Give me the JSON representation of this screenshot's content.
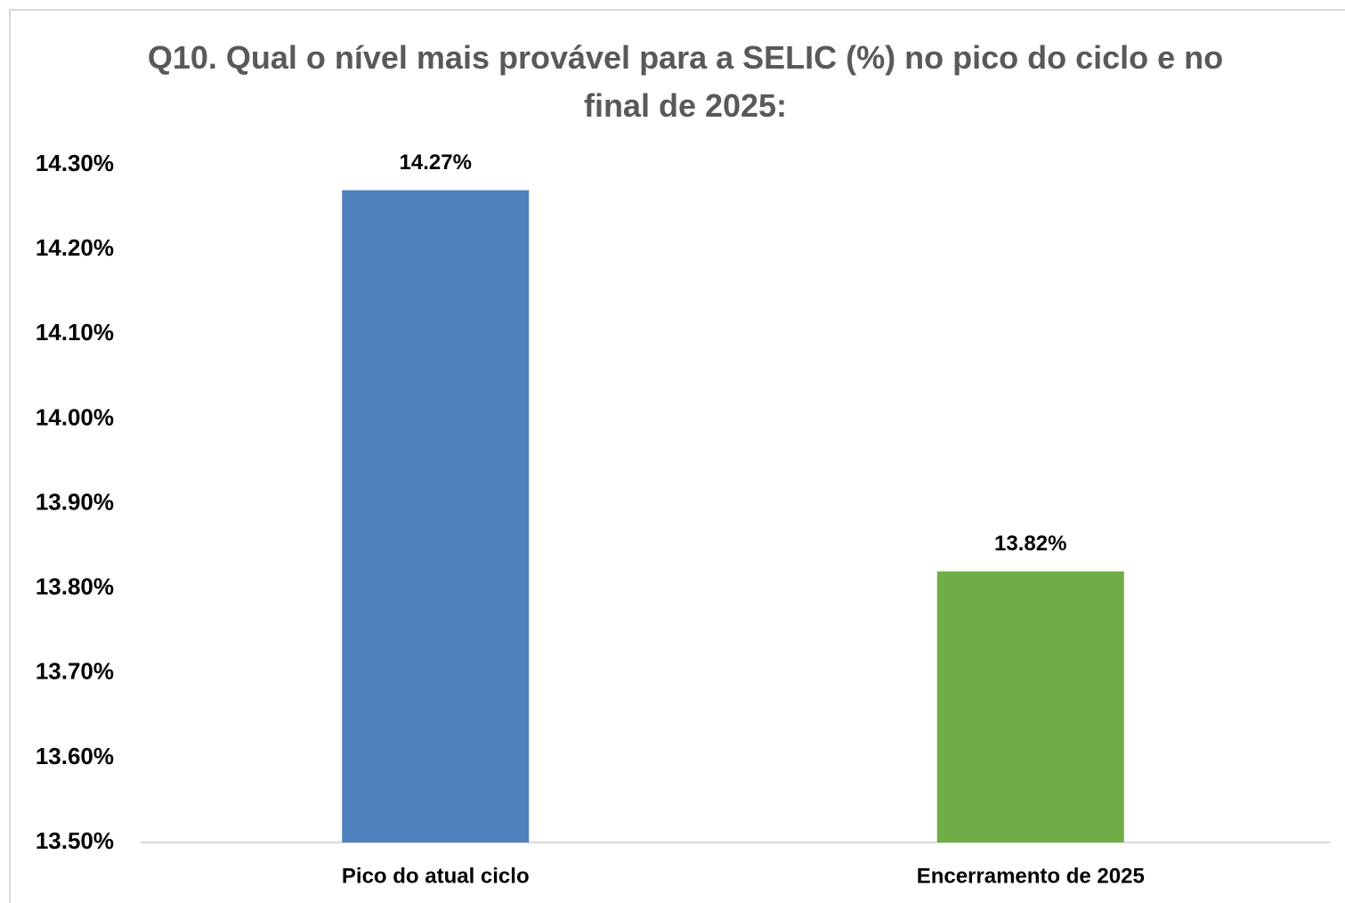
{
  "chart_data": {
    "type": "bar",
    "title": "Q10. Qual o nível mais provável para a SELIC (%) no pico do ciclo e no final de 2025:",
    "categories": [
      "Pico do atual ciclo",
      "Encerramento de 2025"
    ],
    "values": [
      14.27,
      13.82
    ],
    "value_labels": [
      "14.27%",
      "13.82%"
    ],
    "colors": [
      "#4f81bd",
      "#70ad47"
    ],
    "ylim": [
      13.5,
      14.3
    ],
    "yticks": [
      {
        "value": 13.5,
        "label": "13.50%"
      },
      {
        "value": 13.6,
        "label": "13.60%"
      },
      {
        "value": 13.7,
        "label": "13.70%"
      },
      {
        "value": 13.8,
        "label": "13.80%"
      },
      {
        "value": 13.9,
        "label": "13.90%"
      },
      {
        "value": 14.0,
        "label": "14.00%"
      },
      {
        "value": 14.1,
        "label": "14.10%"
      },
      {
        "value": 14.2,
        "label": "14.20%"
      },
      {
        "value": 14.3,
        "label": "14.30%"
      }
    ],
    "grid": false
  }
}
